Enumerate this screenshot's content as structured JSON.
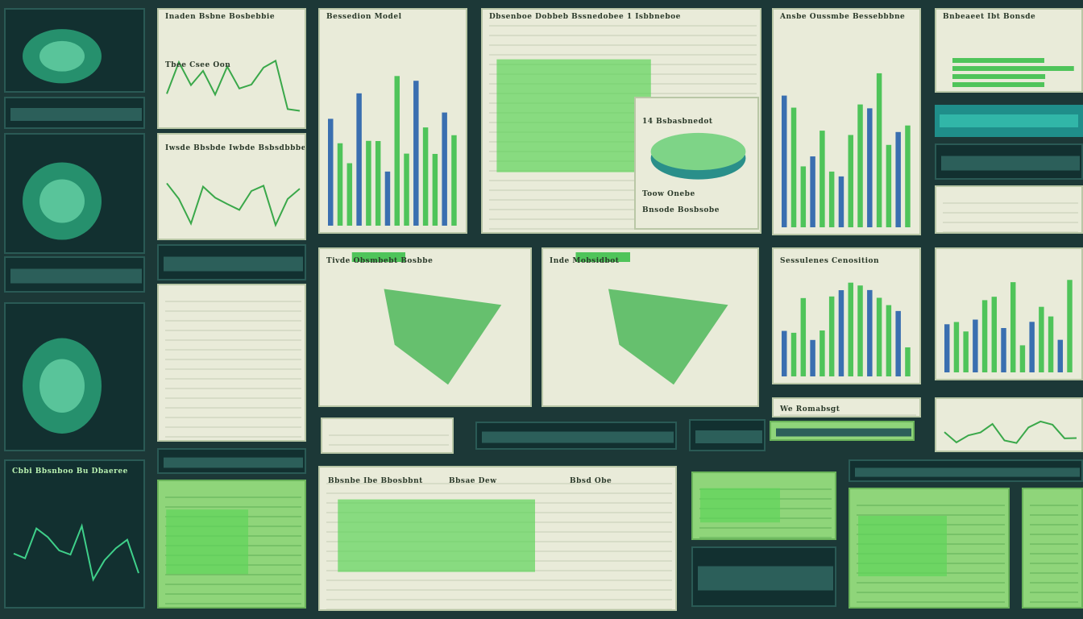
{
  "panels": [
    {
      "title": "Inaden Bsbne Bosbebbie"
    },
    {
      "title": "Bessedion Model"
    },
    {
      "title": "Dbsenboe Dobbeb Bssnedobee 1 Isbbneboe"
    },
    {
      "title": "Ansbe Oussmbe Bessebbbne"
    },
    {
      "title": "Bnbeaeet Ibt Bonsde"
    },
    {
      "title": "Tbee Csee Oon"
    },
    {
      "title": "Iwsde Bbsbde Iwbde Bsbsdbbbe"
    },
    {
      "title": "14 Bsbasbnedot"
    },
    {
      "title": "Toow Onebe"
    },
    {
      "title": "Bnsode Bosbsobe"
    },
    {
      "title": "Tivde Obsmbebt Bosbbe"
    },
    {
      "title": "Inde Mobsidbot"
    },
    {
      "title": "Sessulenes Cenosition"
    },
    {
      "title": "We Romabsgt"
    },
    {
      "title": "Bbsnbe Ibe Bbosbbnt"
    },
    {
      "title": "Bbsae Dew"
    },
    {
      "title": "Bbsd Obe"
    },
    {
      "title": "Cbbi Bbsnboo Bu Dbaeree"
    }
  ]
}
